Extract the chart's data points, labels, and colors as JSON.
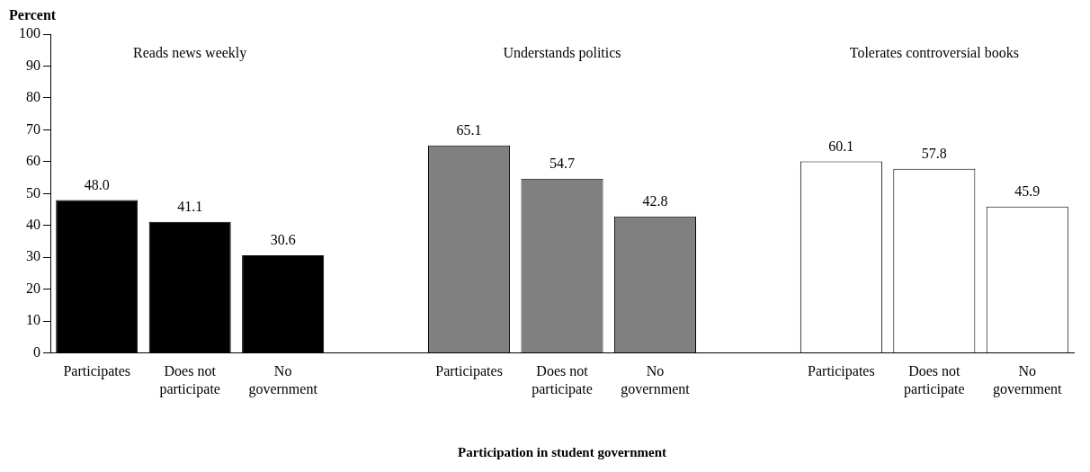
{
  "chart_data": {
    "type": "bar",
    "ylabel": "Percent",
    "xlabel": "Participation in student government",
    "categories": [
      "Participates",
      "Does not participate",
      "No government",
      null,
      "Participates",
      "Does not participate",
      "No government",
      null,
      "Participates",
      "Does not participate",
      "No government"
    ],
    "values": [
      48.0,
      41.1,
      30.6,
      null,
      65.1,
      54.7,
      42.8,
      null,
      60.1,
      57.8,
      45.9
    ],
    "value_labels": [
      "48.0",
      "41.1",
      "30.6",
      null,
      "65.1",
      "54.7",
      "42.8",
      null,
      "60.1",
      "57.8",
      "45.9"
    ],
    "colors": [
      "#000000",
      "#000000",
      "#000000",
      null,
      "#808080",
      "#808080",
      "#808080",
      null,
      "#ffffff",
      "#ffffff",
      "#ffffff"
    ],
    "annotations": [
      "Reads news weekly",
      "Understands politics",
      "Tolerates controversial books"
    ],
    "ylim": [
      0,
      100
    ],
    "yticks": [
      0,
      10,
      20,
      30,
      40,
      50,
      60,
      70,
      80,
      90,
      100
    ],
    "grid": false,
    "legend": false
  }
}
